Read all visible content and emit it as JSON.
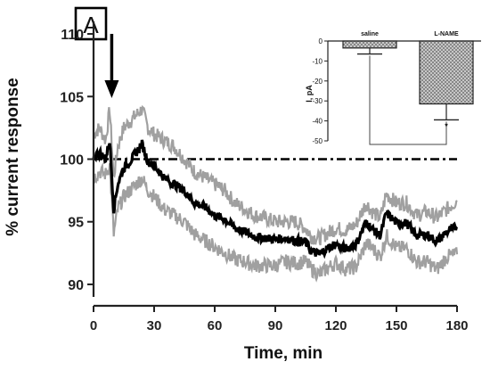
{
  "chart_data": [
    {
      "type": "line",
      "panel_label": "A",
      "xlabel": "Time, min",
      "ylabel": "% current response",
      "xlim": [
        0,
        180
      ],
      "ylim": [
        89,
        111
      ],
      "x_ticks": [
        0,
        30,
        60,
        90,
        120,
        150,
        180
      ],
      "y_ticks": [
        90,
        95,
        100,
        105,
        110
      ],
      "baseline_y": 100,
      "arrow_x": 9,
      "colors": {
        "mean": "#000000",
        "sem": "#a0a0a0"
      },
      "series": [
        {
          "x": [
            0,
            3,
            6,
            8,
            10,
            12,
            15,
            18,
            21,
            24,
            27,
            30,
            35,
            40,
            45,
            50,
            55,
            60,
            65,
            70,
            75,
            80,
            85,
            90,
            95,
            100,
            105,
            108,
            112,
            115,
            120,
            125,
            130,
            135,
            138,
            142,
            145,
            150,
            155,
            160,
            165,
            170,
            175,
            180
          ],
          "y": [
            100.2,
            100.5,
            100.0,
            101.5,
            96.0,
            98.0,
            99.3,
            99.8,
            100.5,
            101.2,
            99.8,
            99.5,
            98.5,
            98.0,
            97.5,
            96.5,
            96.2,
            95.5,
            95.2,
            94.5,
            94.2,
            93.8,
            93.7,
            93.6,
            93.7,
            93.5,
            93.4,
            92.6,
            92.4,
            92.8,
            93.2,
            92.8,
            93.2,
            95.0,
            94.4,
            93.9,
            95.7,
            94.9,
            94.9,
            93.9,
            94.0,
            93.4,
            94.2,
            94.6
          ],
          "y_upper": [
            102.0,
            102.5,
            101.5,
            104.0,
            98.5,
            101.0,
            102.5,
            103.0,
            103.5,
            104.0,
            102.5,
            102.0,
            101.5,
            101.0,
            100.0,
            99.0,
            98.5,
            98.0,
            97.5,
            96.5,
            96.0,
            95.5,
            95.3,
            95.0,
            95.0,
            95.0,
            94.5,
            93.8,
            93.7,
            94.0,
            94.5,
            94.3,
            94.8,
            96.5,
            95.8,
            95.3,
            97.2,
            96.5,
            96.5,
            95.5,
            95.8,
            95.3,
            96.0,
            96.7
          ],
          "y_lower": [
            98.5,
            99.0,
            98.8,
            99.5,
            94.0,
            96.0,
            97.0,
            97.5,
            98.0,
            98.5,
            97.5,
            97.0,
            96.0,
            95.5,
            95.0,
            94.0,
            93.5,
            93.0,
            92.5,
            92.0,
            91.8,
            91.5,
            91.5,
            91.5,
            91.8,
            91.7,
            91.8,
            91.2,
            90.8,
            91.2,
            91.7,
            91.2,
            91.4,
            93.3,
            92.9,
            92.2,
            93.9,
            92.9,
            92.9,
            91.8,
            91.8,
            91.2,
            92.2,
            92.4
          ]
        }
      ]
    },
    {
      "type": "bar",
      "categories": [
        "saline",
        "L-NAME"
      ],
      "values": [
        -3.5,
        -31.5
      ],
      "errors": [
        3.0,
        8.0
      ],
      "ylabel": "I, pA",
      "ylim": [
        -50,
        0
      ],
      "y_ticks": [
        0,
        -10,
        -20,
        -30,
        -40,
        -50
      ],
      "significance": "*"
    }
  ]
}
